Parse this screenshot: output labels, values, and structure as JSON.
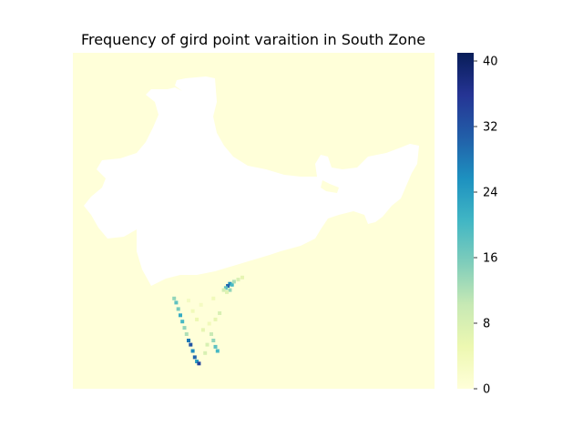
{
  "chart_data": {
    "type": "heatmap",
    "title": "Frequency of gird point varaition in South Zone",
    "xlabel": "",
    "ylabel": "",
    "colormap": "YlGnBu",
    "colorbar": {
      "range": [
        0,
        41
      ],
      "ticks": [
        0,
        8,
        16,
        24,
        32,
        40
      ],
      "tick_labels": [
        "0",
        "8",
        "16",
        "24",
        "32",
        "40"
      ]
    },
    "background_value": 0,
    "grid": false,
    "axes_visible": false,
    "cells": [
      {
        "lon": 80.2,
        "lat": 16.0,
        "value": 26
      },
      {
        "lon": 80.0,
        "lat": 15.8,
        "value": 30
      },
      {
        "lon": 80.4,
        "lat": 15.9,
        "value": 20
      },
      {
        "lon": 79.8,
        "lat": 15.6,
        "value": 18
      },
      {
        "lon": 80.6,
        "lat": 16.2,
        "value": 12
      },
      {
        "lon": 81.0,
        "lat": 16.4,
        "value": 8
      },
      {
        "lon": 81.4,
        "lat": 16.6,
        "value": 6
      },
      {
        "lon": 79.6,
        "lat": 15.4,
        "value": 9
      },
      {
        "lon": 80.2,
        "lat": 15.4,
        "value": 14
      },
      {
        "lon": 79.9,
        "lat": 15.2,
        "value": 7
      },
      {
        "lon": 74.8,
        "lat": 14.6,
        "value": 14
      },
      {
        "lon": 75.0,
        "lat": 14.2,
        "value": 18
      },
      {
        "lon": 75.2,
        "lat": 13.6,
        "value": 16
      },
      {
        "lon": 75.4,
        "lat": 13.0,
        "value": 22
      },
      {
        "lon": 75.6,
        "lat": 12.4,
        "value": 20
      },
      {
        "lon": 75.8,
        "lat": 11.8,
        "value": 14
      },
      {
        "lon": 76.0,
        "lat": 11.2,
        "value": 12
      },
      {
        "lon": 76.2,
        "lat": 10.6,
        "value": 28
      },
      {
        "lon": 76.4,
        "lat": 10.2,
        "value": 32
      },
      {
        "lon": 76.6,
        "lat": 9.6,
        "value": 26
      },
      {
        "lon": 76.8,
        "lat": 9.0,
        "value": 30
      },
      {
        "lon": 77.0,
        "lat": 8.6,
        "value": 24
      },
      {
        "lon": 77.2,
        "lat": 8.4,
        "value": 34
      },
      {
        "lon": 78.4,
        "lat": 11.2,
        "value": 10
      },
      {
        "lon": 78.6,
        "lat": 10.6,
        "value": 14
      },
      {
        "lon": 78.8,
        "lat": 10.0,
        "value": 18
      },
      {
        "lon": 79.0,
        "lat": 9.6,
        "value": 20
      },
      {
        "lon": 78.0,
        "lat": 10.2,
        "value": 8
      },
      {
        "lon": 77.6,
        "lat": 11.6,
        "value": 6
      },
      {
        "lon": 77.0,
        "lat": 12.6,
        "value": 5
      },
      {
        "lon": 78.2,
        "lat": 12.2,
        "value": 4
      },
      {
        "lon": 76.6,
        "lat": 13.4,
        "value": 4
      },
      {
        "lon": 77.8,
        "lat": 9.4,
        "value": 8
      },
      {
        "lon": 78.8,
        "lat": 12.6,
        "value": 6
      },
      {
        "lon": 79.2,
        "lat": 13.2,
        "value": 8
      },
      {
        "lon": 76.2,
        "lat": 14.4,
        "value": 3
      },
      {
        "lon": 77.4,
        "lat": 14.0,
        "value": 3
      },
      {
        "lon": 78.6,
        "lat": 14.6,
        "value": 4
      }
    ]
  }
}
